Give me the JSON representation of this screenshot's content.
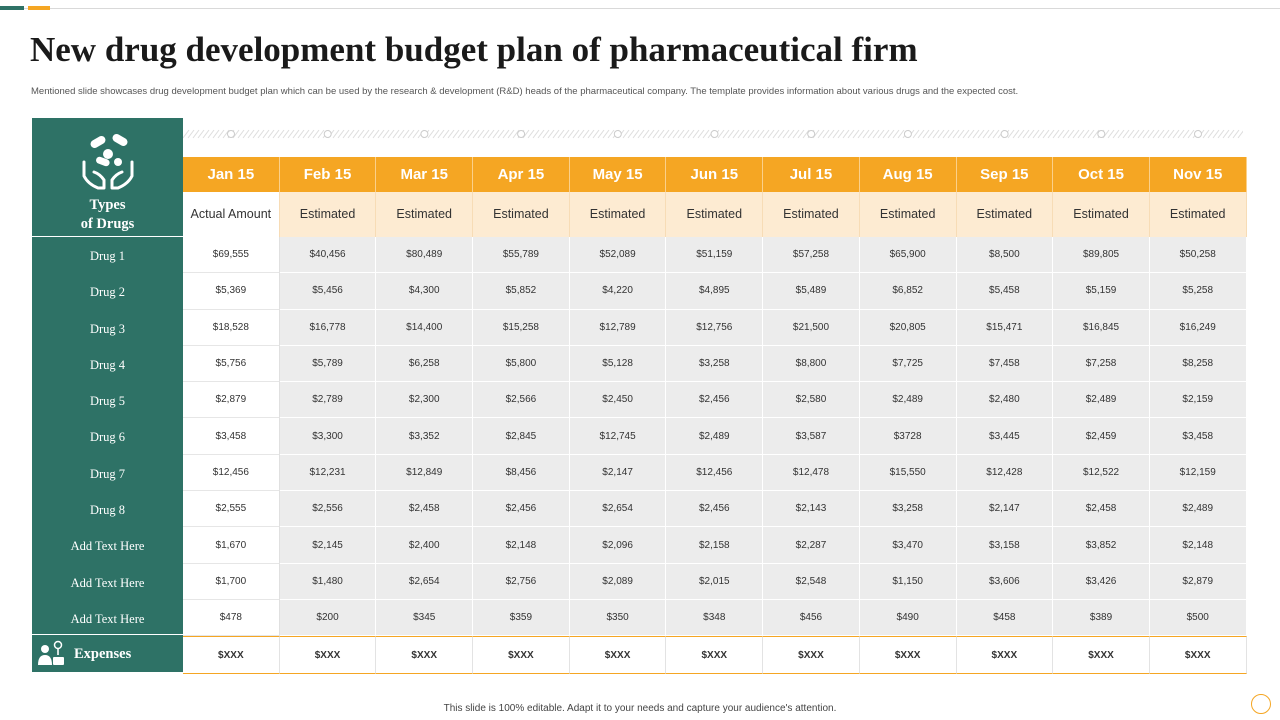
{
  "title": "New drug development budget plan of pharmaceutical firm",
  "subtitle": "Mentioned slide showcases drug development budget plan which can be used by the research & development (R&D) heads of the pharmaceutical company. The template provides information about various drugs and the expected cost.",
  "left": {
    "types_line1": "Types",
    "types_line2": "of Drugs",
    "types_icon": "hands-pills-icon",
    "expenses_label": "Expenses",
    "expenses_icon": "person-money-icon"
  },
  "months": [
    "Jan 15",
    "Feb 15",
    "Mar 15",
    "Apr 15",
    "May 15",
    "Jun 15",
    "Jul 15",
    "Aug 15",
    "Sep 15",
    "Oct 15",
    "Nov 15"
  ],
  "subheaders": [
    "Actual Amount",
    "Estimated",
    "Estimated",
    "Estimated",
    "Estimated",
    "Estimated",
    "Estimated",
    "Estimated",
    "Estimated",
    "Estimated",
    "Estimated"
  ],
  "rows": [
    {
      "label": "Drug 1",
      "values": [
        "$69,555",
        "$40,456",
        "$80,489",
        "$55,789",
        "$52,089",
        "$51,159",
        "$57,258",
        "$65,900",
        "$8,500",
        "$89,805",
        "$50,258"
      ]
    },
    {
      "label": "Drug 2",
      "values": [
        "$5,369",
        "$5,456",
        "$4,300",
        "$5,852",
        "$4,220",
        "$4,895",
        "$5,489",
        "$6,852",
        "$5,458",
        "$5,159",
        "$5,258"
      ]
    },
    {
      "label": "Drug 3",
      "values": [
        "$18,528",
        "$16,778",
        "$14,400",
        "$15,258",
        "$12,789",
        "$12,756",
        "$21,500",
        "$20,805",
        "$15,471",
        "$16,845",
        "$16,249"
      ]
    },
    {
      "label": "Drug 4",
      "values": [
        "$5,756",
        "$5,789",
        "$6,258",
        "$5,800",
        "$5,128",
        "$3,258",
        "$8,800",
        "$7,725",
        "$7,458",
        "$7,258",
        "$8,258"
      ]
    },
    {
      "label": "Drug 5",
      "values": [
        "$2,879",
        "$2,789",
        "$2,300",
        "$2,566",
        "$2,450",
        "$2,456",
        "$2,580",
        "$2,489",
        "$2,480",
        "$2,489",
        "$2,159"
      ]
    },
    {
      "label": "Drug 6",
      "values": [
        "$3,458",
        "$3,300",
        "$3,352",
        "$2,845",
        "$12,745",
        "$2,489",
        "$3,587",
        "$3728",
        "$3,445",
        "$2,459",
        "$3,458"
      ]
    },
    {
      "label": "Drug 7",
      "values": [
        "$12,456",
        "$12,231",
        "$12,849",
        "$8,456",
        "$2,147",
        "$12,456",
        "$12,478",
        "$15,550",
        "$12,428",
        "$12,522",
        "$12,159"
      ]
    },
    {
      "label": "Drug 8",
      "values": [
        "$2,555",
        "$2,556",
        "$2,458",
        "$2,456",
        "$2,654",
        "$2,456",
        "$2,143",
        "$3,258",
        "$2,147",
        "$2,458",
        "$2,489"
      ]
    },
    {
      "label": "Add Text Here",
      "values": [
        "$1,670",
        "$2,145",
        "$2,400",
        "$2,148",
        "$2,096",
        "$2,158",
        "$2,287",
        "$3,470",
        "$3,158",
        "$3,852",
        "$2,148"
      ]
    },
    {
      "label": "Add Text Here",
      "values": [
        "$1,700",
        "$1,480",
        "$2,654",
        "$2,756",
        "$2,089",
        "$2,015",
        "$2,548",
        "$1,150",
        "$3,606",
        "$3,426",
        "$2,879"
      ]
    },
    {
      "label": "Add Text Here",
      "values": [
        "$478",
        "$200",
        "$345",
        "$359",
        "$350",
        "$348",
        "$456",
        "$490",
        "$458",
        "$389",
        "$500"
      ]
    }
  ],
  "expenses": [
    "$XXX",
    "$XXX",
    "$XXX",
    "$XXX",
    "$XXX",
    "$XXX",
    "$XXX",
    "$XXX",
    "$XXX",
    "$XXX",
    "$XXX"
  ],
  "footer": "This slide is 100% editable. Adapt it to your needs and capture your audience's attention.",
  "colors": {
    "teal": "#2e7266",
    "orange": "#f5a623",
    "peach": "#fdebd2",
    "gray_cell": "#ececec"
  }
}
